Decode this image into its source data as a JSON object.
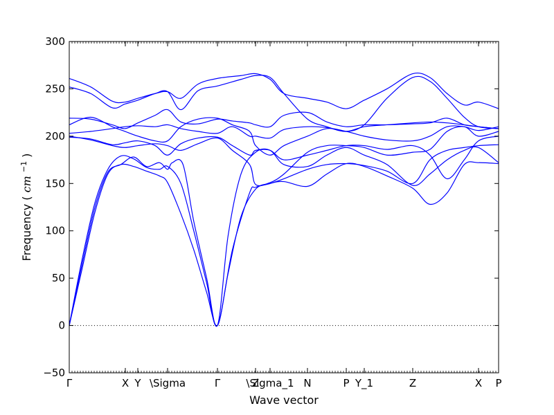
{
  "chart_data": {
    "type": "line",
    "xlabel": "Wave vector",
    "ylabel": "Frequency",
    "ylabel_unit_base": "cm",
    "ylabel_unit_exp": "−1",
    "ylim": [
      -50,
      300
    ],
    "yticks": [
      -50,
      0,
      50,
      100,
      150,
      200,
      250,
      300
    ],
    "xlim": [
      0,
      1
    ],
    "grid": false,
    "line_color": "#0000ff",
    "zero_line": {
      "y": 0,
      "style": "dotted",
      "color": "#000000"
    },
    "x_ticks": [
      {
        "label": "Γ",
        "x": 0.0
      },
      {
        "label": "X",
        "x": 0.1306
      },
      {
        "label": "Y",
        "x": 0.1597
      },
      {
        "label": "\\Sigma",
        "x": 0.229
      },
      {
        "label": "Γ",
        "x": 0.3452
      },
      {
        "label": "Z",
        "x": 0.4339
      },
      {
        "label": "\\Sigma_1",
        "x": 0.4677
      },
      {
        "label": "N",
        "x": 0.5548
      },
      {
        "label": "P",
        "x": 0.6452
      },
      {
        "label": "Y_1",
        "x": 0.6871
      },
      {
        "label": "Z",
        "x": 0.8
      },
      {
        "label": "X",
        "x": 0.9532
      },
      {
        "label": "P",
        "x": 1.0
      }
    ],
    "series": [
      {
        "values": [
          [
            0.0,
            0
          ],
          [
            0.03,
            60
          ],
          [
            0.06,
            120
          ],
          [
            0.09,
            160
          ],
          [
            0.12,
            170
          ],
          [
            0.15,
            168
          ],
          [
            0.18,
            163
          ],
          [
            0.21,
            158
          ],
          [
            0.229,
            151
          ],
          [
            0.26,
            118
          ],
          [
            0.29,
            80
          ],
          [
            0.32,
            35
          ],
          [
            0.345,
            0
          ],
          [
            0.37,
            55
          ],
          [
            0.4,
            115
          ],
          [
            0.434,
            144
          ],
          [
            0.468,
            150
          ],
          [
            0.5,
            152
          ],
          [
            0.555,
            147
          ],
          [
            0.6,
            160
          ],
          [
            0.645,
            171
          ],
          [
            0.687,
            168
          ],
          [
            0.74,
            158
          ],
          [
            0.8,
            145
          ],
          [
            0.84,
            128
          ],
          [
            0.88,
            140
          ],
          [
            0.92,
            170
          ],
          [
            0.953,
            172
          ],
          [
            1.0,
            171
          ]
        ]
      },
      {
        "values": [
          [
            0.0,
            0
          ],
          [
            0.03,
            70
          ],
          [
            0.06,
            130
          ],
          [
            0.09,
            165
          ],
          [
            0.12,
            179
          ],
          [
            0.15,
            176
          ],
          [
            0.18,
            167
          ],
          [
            0.21,
            165
          ],
          [
            0.229,
            168
          ],
          [
            0.26,
            150
          ],
          [
            0.29,
            100
          ],
          [
            0.32,
            45
          ],
          [
            0.345,
            0
          ],
          [
            0.38,
            80
          ],
          [
            0.42,
            140
          ],
          [
            0.434,
            146
          ],
          [
            0.468,
            150
          ],
          [
            0.5,
            155
          ],
          [
            0.555,
            165
          ],
          [
            0.6,
            170
          ],
          [
            0.645,
            171
          ],
          [
            0.687,
            169
          ],
          [
            0.74,
            163
          ],
          [
            0.8,
            150
          ],
          [
            0.84,
            175
          ],
          [
            0.88,
            185
          ],
          [
            0.92,
            188
          ],
          [
            0.953,
            190
          ],
          [
            1.0,
            191
          ]
        ]
      },
      {
        "values": [
          [
            0.0,
            0
          ],
          [
            0.03,
            65
          ],
          [
            0.06,
            125
          ],
          [
            0.09,
            162
          ],
          [
            0.12,
            170
          ],
          [
            0.15,
            178
          ],
          [
            0.18,
            168
          ],
          [
            0.21,
            172
          ],
          [
            0.229,
            165
          ],
          [
            0.24,
            172
          ],
          [
            0.265,
            170
          ],
          [
            0.29,
            110
          ],
          [
            0.32,
            50
          ],
          [
            0.345,
            0
          ],
          [
            0.37,
            95
          ],
          [
            0.4,
            160
          ],
          [
            0.434,
            183
          ],
          [
            0.468,
            185
          ],
          [
            0.5,
            170
          ],
          [
            0.555,
            168
          ],
          [
            0.6,
            180
          ],
          [
            0.645,
            188
          ],
          [
            0.687,
            180
          ],
          [
            0.74,
            170
          ],
          [
            0.8,
            148
          ],
          [
            0.84,
            160
          ],
          [
            0.88,
            175
          ],
          [
            0.92,
            185
          ],
          [
            0.953,
            188
          ],
          [
            1.0,
            172
          ]
        ]
      },
      {
        "values": [
          [
            0.0,
            200
          ],
          [
            0.05,
            196
          ],
          [
            0.1,
            190
          ],
          [
            0.13,
            188
          ],
          [
            0.16,
            190
          ],
          [
            0.2,
            192
          ],
          [
            0.229,
            190
          ],
          [
            0.26,
            185
          ],
          [
            0.3,
            192
          ],
          [
            0.345,
            198
          ],
          [
            0.38,
            185
          ],
          [
            0.42,
            170
          ],
          [
            0.434,
            149
          ],
          [
            0.468,
            151
          ],
          [
            0.5,
            160
          ],
          [
            0.555,
            183
          ],
          [
            0.6,
            190
          ],
          [
            0.645,
            190
          ],
          [
            0.687,
            188
          ],
          [
            0.74,
            180
          ],
          [
            0.8,
            183
          ],
          [
            0.84,
            186
          ],
          [
            0.88,
            205
          ],
          [
            0.92,
            210
          ],
          [
            0.953,
            200
          ],
          [
            1.0,
            205
          ]
        ]
      },
      {
        "values": [
          [
            0.0,
            199
          ],
          [
            0.05,
            197
          ],
          [
            0.1,
            191
          ],
          [
            0.13,
            193
          ],
          [
            0.16,
            195
          ],
          [
            0.2,
            190
          ],
          [
            0.229,
            180
          ],
          [
            0.26,
            192
          ],
          [
            0.3,
            198
          ],
          [
            0.345,
            199
          ],
          [
            0.38,
            190
          ],
          [
            0.42,
            180
          ],
          [
            0.434,
            185
          ],
          [
            0.468,
            185
          ],
          [
            0.5,
            175
          ],
          [
            0.555,
            180
          ],
          [
            0.6,
            185
          ],
          [
            0.645,
            190
          ],
          [
            0.687,
            190
          ],
          [
            0.74,
            186
          ],
          [
            0.8,
            190
          ],
          [
            0.84,
            180
          ],
          [
            0.88,
            155
          ],
          [
            0.92,
            175
          ],
          [
            0.953,
            195
          ],
          [
            1.0,
            200
          ]
        ]
      },
      {
        "values": [
          [
            0.0,
            203
          ],
          [
            0.05,
            205
          ],
          [
            0.1,
            208
          ],
          [
            0.13,
            210
          ],
          [
            0.16,
            211
          ],
          [
            0.2,
            210
          ],
          [
            0.229,
            212
          ],
          [
            0.26,
            208
          ],
          [
            0.3,
            205
          ],
          [
            0.345,
            203
          ],
          [
            0.38,
            210
          ],
          [
            0.42,
            200
          ],
          [
            0.434,
            200
          ],
          [
            0.468,
            198
          ],
          [
            0.5,
            207
          ],
          [
            0.555,
            210
          ],
          [
            0.6,
            209
          ],
          [
            0.645,
            205
          ],
          [
            0.687,
            210
          ],
          [
            0.74,
            212
          ],
          [
            0.8,
            214
          ],
          [
            0.84,
            215
          ],
          [
            0.88,
            214
          ],
          [
            0.92,
            212
          ],
          [
            0.953,
            210
          ],
          [
            1.0,
            208
          ]
        ]
      },
      {
        "values": [
          [
            0.0,
            212
          ],
          [
            0.05,
            220
          ],
          [
            0.1,
            210
          ],
          [
            0.13,
            205
          ],
          [
            0.16,
            200
          ],
          [
            0.2,
            195
          ],
          [
            0.229,
            195
          ],
          [
            0.26,
            210
          ],
          [
            0.3,
            218
          ],
          [
            0.345,
            219
          ],
          [
            0.38,
            212
          ],
          [
            0.42,
            205
          ],
          [
            0.434,
            190
          ],
          [
            0.468,
            180
          ],
          [
            0.5,
            190
          ],
          [
            0.555,
            200
          ],
          [
            0.6,
            208
          ],
          [
            0.645,
            205
          ],
          [
            0.687,
            200
          ],
          [
            0.74,
            196
          ],
          [
            0.8,
            195
          ],
          [
            0.84,
            200
          ],
          [
            0.88,
            210
          ],
          [
            0.92,
            210
          ],
          [
            0.953,
            206
          ],
          [
            1.0,
            210
          ]
        ]
      },
      {
        "values": [
          [
            0.0,
            219
          ],
          [
            0.05,
            218
          ],
          [
            0.1,
            212
          ],
          [
            0.13,
            208
          ],
          [
            0.16,
            214
          ],
          [
            0.2,
            222
          ],
          [
            0.229,
            228
          ],
          [
            0.26,
            215
          ],
          [
            0.3,
            213
          ],
          [
            0.345,
            218
          ],
          [
            0.38,
            216
          ],
          [
            0.42,
            214
          ],
          [
            0.434,
            212
          ],
          [
            0.468,
            210
          ],
          [
            0.5,
            222
          ],
          [
            0.555,
            225
          ],
          [
            0.6,
            215
          ],
          [
            0.645,
            210
          ],
          [
            0.687,
            212
          ],
          [
            0.74,
            212
          ],
          [
            0.8,
            213
          ],
          [
            0.84,
            214
          ],
          [
            0.88,
            219
          ],
          [
            0.92,
            212
          ],
          [
            0.953,
            210
          ],
          [
            1.0,
            208
          ]
        ]
      },
      {
        "values": [
          [
            0.0,
            252
          ],
          [
            0.05,
            245
          ],
          [
            0.1,
            230
          ],
          [
            0.13,
            234
          ],
          [
            0.16,
            238
          ],
          [
            0.2,
            245
          ],
          [
            0.229,
            247
          ],
          [
            0.26,
            228
          ],
          [
            0.3,
            248
          ],
          [
            0.345,
            253
          ],
          [
            0.4,
            260
          ],
          [
            0.434,
            264
          ],
          [
            0.468,
            262
          ],
          [
            0.5,
            245
          ],
          [
            0.555,
            218
          ],
          [
            0.6,
            210
          ],
          [
            0.645,
            205
          ],
          [
            0.687,
            212
          ],
          [
            0.74,
            240
          ],
          [
            0.8,
            262
          ],
          [
            0.84,
            258
          ],
          [
            0.88,
            240
          ],
          [
            0.92,
            220
          ],
          [
            0.953,
            210
          ],
          [
            1.0,
            208
          ]
        ]
      },
      {
        "values": [
          [
            0.0,
            261
          ],
          [
            0.05,
            252
          ],
          [
            0.1,
            237
          ],
          [
            0.13,
            236
          ],
          [
            0.16,
            240
          ],
          [
            0.2,
            245
          ],
          [
            0.229,
            247
          ],
          [
            0.26,
            240
          ],
          [
            0.3,
            255
          ],
          [
            0.345,
            261
          ],
          [
            0.4,
            264
          ],
          [
            0.434,
            266
          ],
          [
            0.468,
            260
          ],
          [
            0.5,
            245
          ],
          [
            0.555,
            240
          ],
          [
            0.6,
            236
          ],
          [
            0.645,
            229
          ],
          [
            0.687,
            238
          ],
          [
            0.74,
            250
          ],
          [
            0.8,
            266
          ],
          [
            0.84,
            262
          ],
          [
            0.88,
            245
          ],
          [
            0.92,
            233
          ],
          [
            0.953,
            236
          ],
          [
            1.0,
            229
          ]
        ]
      }
    ]
  }
}
